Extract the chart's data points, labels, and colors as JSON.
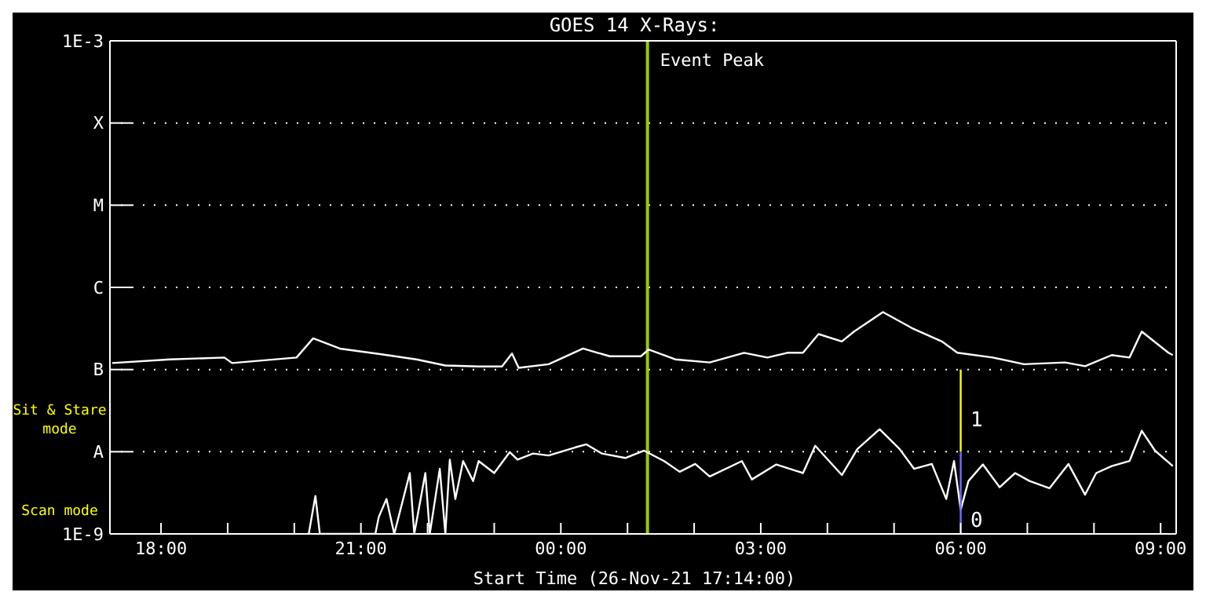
{
  "chart_data": {
    "type": "line",
    "title": "GOES 14 X-Rays:",
    "xlabel": "Start Time (26-Nov-21 17:14:00)",
    "log": "y",
    "grid": "y",
    "xlim": [
      "--11-26T17:14",
      "--11-27T09:14"
    ],
    "xticks": [
      {
        "value": "--11-26T18:00",
        "label": "18:00"
      },
      {
        "value": "--11-26T19:00",
        "label": null
      },
      {
        "value": "--11-26T20:00",
        "label": null
      },
      {
        "value": "--11-26T21:00",
        "label": "21:00"
      },
      {
        "value": "--11-26T22:00",
        "label": null
      },
      {
        "value": "--11-26T23:00",
        "label": null
      },
      {
        "value": "--11-27T00:00",
        "label": "00:00"
      },
      {
        "value": "--11-27T01:00",
        "label": null
      },
      {
        "value": "--11-27T02:00",
        "label": null
      },
      {
        "value": "--11-27T03:00",
        "label": "03:00"
      },
      {
        "value": "--11-27T04:00",
        "label": null
      },
      {
        "value": "--11-27T05:00",
        "label": null
      },
      {
        "value": "--11-27T06:00",
        "label": "06:00"
      },
      {
        "value": "--11-27T07:00",
        "label": null
      },
      {
        "value": "--11-27T08:00",
        "label": null
      },
      {
        "value": "--11-27T09:00",
        "label": "09:00"
      }
    ],
    "ylim": [
      1e-09,
      0.001
    ],
    "yticks": [
      {
        "value": 1e-09,
        "label": "1E-9"
      },
      {
        "value": 1e-08,
        "label": "A"
      },
      {
        "value": 1e-07,
        "label": "B"
      },
      {
        "value": 1e-06,
        "label": "C"
      },
      {
        "value": 1e-05,
        "label": "M"
      },
      {
        "value": 0.0001,
        "label": "X"
      },
      {
        "value": 0.001,
        "label": "1E-3"
      }
    ],
    "series": [
      {
        "color": "#ffffff",
        "x": [
          "--11-26T17:16",
          "--11-26T18:08",
          "--11-26T18:57",
          "--11-26T19:04",
          "--11-26T20:02",
          "--11-26T20:17",
          "--11-26T20:41",
          "--11-26T21:16",
          "--11-26T21:50",
          "--11-26T22:16",
          "--11-26T22:46",
          "--11-26T23:07",
          "--11-26T23:16",
          "--11-26T23:22",
          "--11-26T23:49",
          "--11-27T00:20",
          "--11-27T00:44",
          "--11-27T01:12",
          "--11-27T01:19",
          "--11-27T01:43",
          "--11-27T02:14",
          "--11-27T02:45",
          "--11-27T03:06",
          "--11-27T03:24",
          "--11-27T03:38",
          "--11-27T03:52",
          "--11-27T04:13",
          "--11-27T04:24",
          "--11-27T04:50",
          "--11-27T05:16",
          "--11-27T05:43",
          "--11-27T05:57",
          "--11-27T06:29",
          "--11-27T06:57",
          "--11-27T07:34",
          "--11-27T07:52",
          "--11-27T08:16",
          "--11-27T08:32",
          "--11-27T08:43",
          "--11-27T09:07",
          "--11-27T09:11"
        ],
        "values": [
          1.2e-07,
          1.33e-07,
          1.4e-07,
          1.2e-07,
          1.4e-07,
          2.4e-07,
          1.8e-07,
          1.55e-07,
          1.33e-07,
          1.12e-07,
          1.09e-07,
          1.09e-07,
          1.57e-07,
          1.05e-07,
          1.16e-07,
          1.8e-07,
          1.45e-07,
          1.45e-07,
          1.75e-07,
          1.33e-07,
          1.22e-07,
          1.6e-07,
          1.4e-07,
          1.6e-07,
          1.6e-07,
          2.7e-07,
          2.2e-07,
          2.9e-07,
          5e-07,
          3.2e-07,
          2.2e-07,
          1.6e-07,
          1.4e-07,
          1.16e-07,
          1.22e-07,
          1.1e-07,
          1.5e-07,
          1.4e-07,
          2.9e-07,
          1.6e-07,
          1.5e-07
        ]
      },
      {
        "color": "#ffffff",
        "x": [
          "--11-26T20:13",
          "--11-26T20:19",
          "--11-26T20:23",
          "--11-26T21:13",
          "--11-26T21:16",
          "--11-26T21:23",
          "--11-26T21:30",
          "--11-26T21:44",
          "--11-26T21:48",
          "--11-26T21:58",
          "--11-26T22:02",
          "--11-26T22:11",
          "--11-26T22:16",
          "--11-26T22:20",
          "--11-26T22:25",
          "--11-26T22:32",
          "--11-26T22:41",
          "--11-26T22:46",
          "--11-26T23:00",
          "--11-26T23:14",
          "--11-26T23:21",
          "--11-26T23:35",
          "--11-26T23:49",
          "--11-27T00:13",
          "--11-27T00:23",
          "--11-27T00:37",
          "--11-27T00:58",
          "--11-27T01:15",
          "--11-27T01:33",
          "--11-27T01:47",
          "--11-27T02:01",
          "--11-27T02:14",
          "--11-27T02:43",
          "--11-27T02:52",
          "--11-27T03:14",
          "--11-27T03:38",
          "--11-27T03:49",
          "--11-27T04:13",
          "--11-27T04:27",
          "--11-27T04:47",
          "--11-27T05:05",
          "--11-27T05:18",
          "--11-27T05:34",
          "--11-27T05:47",
          "--11-27T05:54",
          "--11-27T06:00",
          "--11-27T06:07",
          "--11-27T06:20",
          "--11-27T06:35",
          "--11-27T06:49",
          "--11-27T07:02",
          "--11-27T07:20",
          "--11-27T07:37",
          "--11-27T07:52",
          "--11-27T08:02",
          "--11-27T08:16",
          "--11-27T08:32",
          "--11-27T08:43",
          "--11-27T08:55",
          "--11-27T09:11"
        ],
        "values": [
          1e-09,
          2.9e-09,
          1e-09,
          1e-09,
          1.6e-09,
          2.66e-09,
          1e-09,
          5.5e-09,
          1e-09,
          5.5e-09,
          1e-09,
          6.2e-09,
          1e-09,
          8e-09,
          2.66e-09,
          7.7e-09,
          4.4e-09,
          7.7e-09,
          5.5e-09,
          9.9e-09,
          8e-09,
          9.5e-09,
          9e-09,
          1.13e-08,
          1.23e-08,
          9.5e-09,
          8.4e-09,
          1.03e-08,
          7.7e-09,
          5.7e-09,
          7.1e-09,
          5e-09,
          7.7e-09,
          4.6e-09,
          7e-09,
          5.5e-09,
          1.18e-08,
          5.2e-09,
          1.08e-08,
          1.88e-08,
          1.08e-08,
          6.2e-09,
          7.1e-09,
          2.66e-09,
          7.7e-09,
          1.97e-09,
          4.4e-09,
          7e-09,
          3.7e-09,
          5.5e-09,
          4.4e-09,
          3.6e-09,
          7.1e-09,
          3e-09,
          5.5e-09,
          6.7e-09,
          7.7e-09,
          1.8e-08,
          1.03e-08,
          6.7e-09
        ]
      },
      {
        "color": "#ffff00",
        "x": [
          "--11-27T06:00",
          "--11-27T06:00"
        ],
        "values": [
          1e-07,
          1e-08
        ]
      },
      {
        "color": "#7070ff",
        "x": [
          "--11-27T06:00",
          "--11-27T06:00"
        ],
        "values": [
          1e-08,
          1e-09
        ]
      }
    ],
    "ref_lines": [
      {
        "axis": "x",
        "value": "--11-27T01:18",
        "label": "Event Peak",
        "color": "#99cc00"
      }
    ],
    "annotations": [
      "Sit & Stare mode",
      "Scan mode",
      {
        "text": "1",
        "x": "--11-27T06:06",
        "y": 2.5e-08
      },
      {
        "text": "0",
        "x": "--11-27T06:06",
        "y": 1.5e-09
      }
    ]
  }
}
